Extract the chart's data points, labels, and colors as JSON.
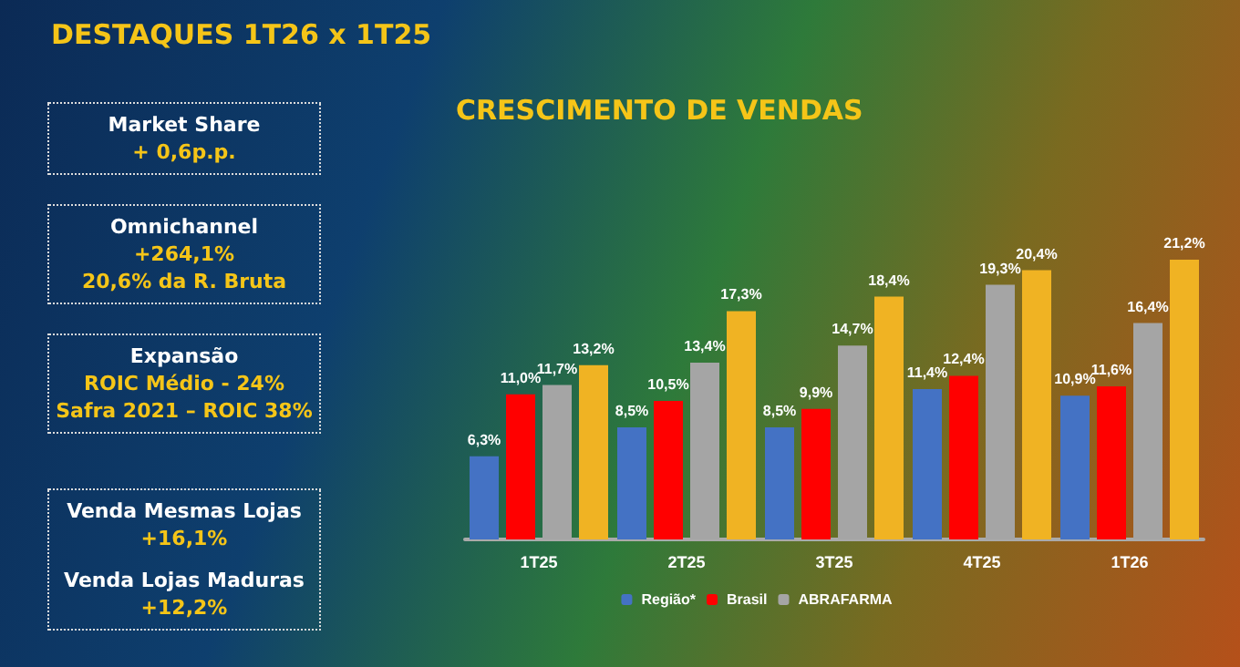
{
  "chart_data": [
    {
      "type": "other",
      "title": "DESTAQUES 1T26 x 1T25",
      "annotations": [
        "Market Share\n+ 0,6p.p.",
        "Omnichannel\n+264,1%\n20,6% da R. Bruta",
        "Expansão\nROIC Médio - 24%\nSafra 2021 – ROIC 38%",
        "Venda Mesmas Lojas\n+16,1%\n\nVenda Lojas Maduras\n+12,2%"
      ]
    },
    {
      "type": "bar",
      "title": "CRESCIMENTO DE VENDAS",
      "categories": [
        "1T25",
        "2T25",
        "3T25",
        "4T25",
        "1T26"
      ],
      "legend": "bottom",
      "series": [
        {
          "name": "Região*",
          "color": "#4472c4",
          "values": [
            6.3,
            8.5,
            8.5,
            11.4,
            10.9
          ],
          "value_labels": [
            "6,3%",
            "8,5%",
            "8,5%",
            "11,4%",
            "10,9%"
          ]
        },
        {
          "name": "Brasil",
          "color": "#ff0000",
          "values": [
            11.0,
            10.5,
            9.9,
            12.4,
            11.6
          ],
          "value_labels": [
            "11,0%",
            "10,5%",
            "9,9%",
            "12,4%",
            "11,6%"
          ]
        },
        {
          "name": "ABRAFARMA",
          "color": "#a5a5a5",
          "values": [
            11.7,
            13.4,
            14.7,
            19.3,
            16.4
          ],
          "value_labels": [
            "11,7%",
            "13,4%",
            "14,7%",
            "19,3%",
            "16,4%"
          ]
        },
        {
          "color": "#f0b323",
          "values": [
            13.2,
            17.3,
            18.4,
            20.4,
            21.2
          ],
          "value_labels": [
            "13,2%",
            "17,3%",
            "18,4%",
            "20,4%",
            "21,2%"
          ]
        }
      ]
    }
  ]
}
